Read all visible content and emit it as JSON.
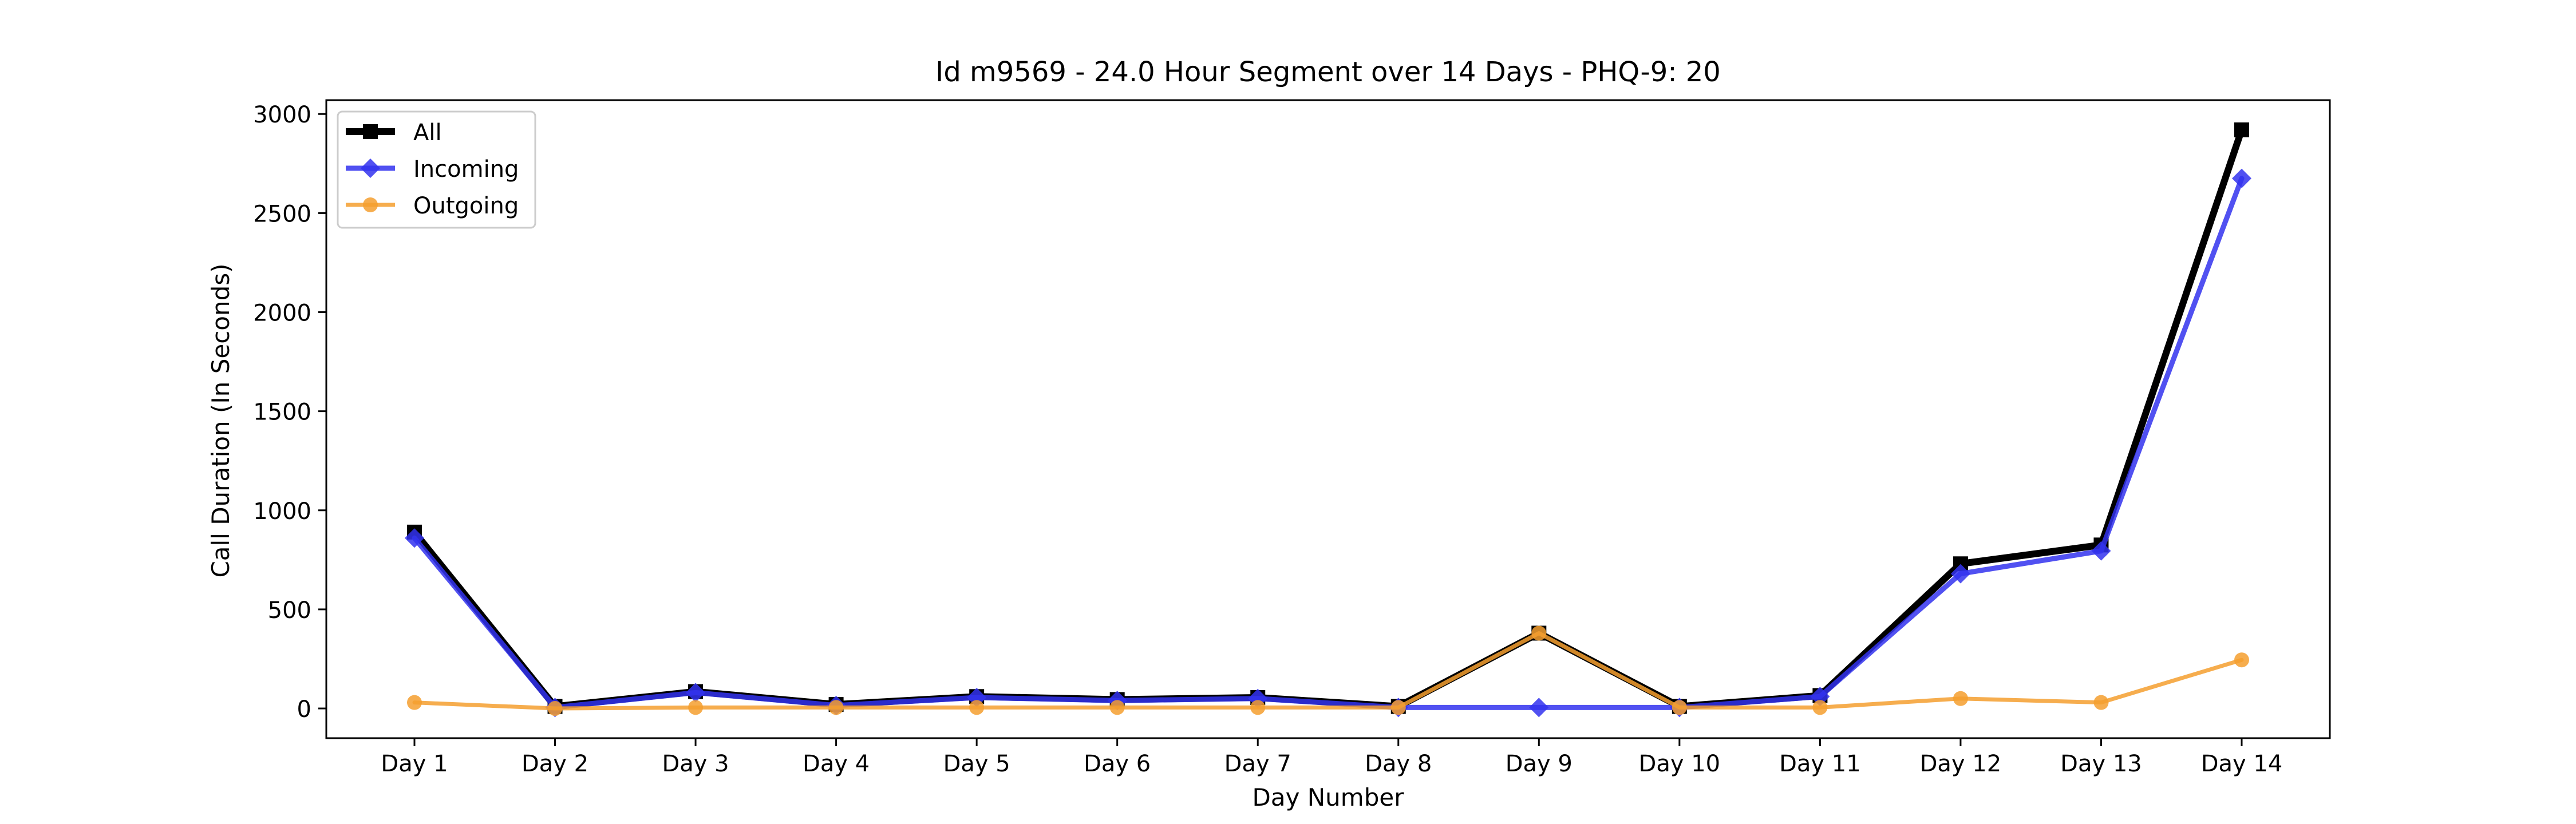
{
  "chart_data": {
    "type": "line",
    "title": "Id m9569 - 24.0 Hour Segment over 14 Days - PHQ-9: 20",
    "xlabel": "Day Number",
    "ylabel": "Call Duration (In Seconds)",
    "categories": [
      "Day 1",
      "Day 2",
      "Day 3",
      "Day 4",
      "Day 5",
      "Day 6",
      "Day 7",
      "Day 8",
      "Day 9",
      "Day 10",
      "Day 11",
      "Day 12",
      "Day 13",
      "Day 14"
    ],
    "ylim": [
      -150,
      3070
    ],
    "yticks": [
      0,
      500,
      1000,
      1500,
      2000,
      2500,
      3000
    ],
    "grid": false,
    "legend_position": "top-left",
    "series": [
      {
        "name": "All",
        "color": "#000000",
        "marker": "square",
        "values": [
          890,
          10,
          85,
          20,
          60,
          45,
          55,
          10,
          380,
          10,
          65,
          730,
          825,
          2920
        ]
      },
      {
        "name": "Incoming",
        "color": "#3333ee",
        "marker": "diamond",
        "values": [
          860,
          5,
          80,
          15,
          55,
          40,
          50,
          5,
          5,
          5,
          60,
          680,
          795,
          2675
        ]
      },
      {
        "name": "Outgoing",
        "color": "#f59f2f",
        "marker": "circle",
        "values": [
          30,
          0,
          5,
          5,
          5,
          5,
          5,
          5,
          380,
          5,
          5,
          50,
          30,
          245
        ]
      }
    ]
  }
}
